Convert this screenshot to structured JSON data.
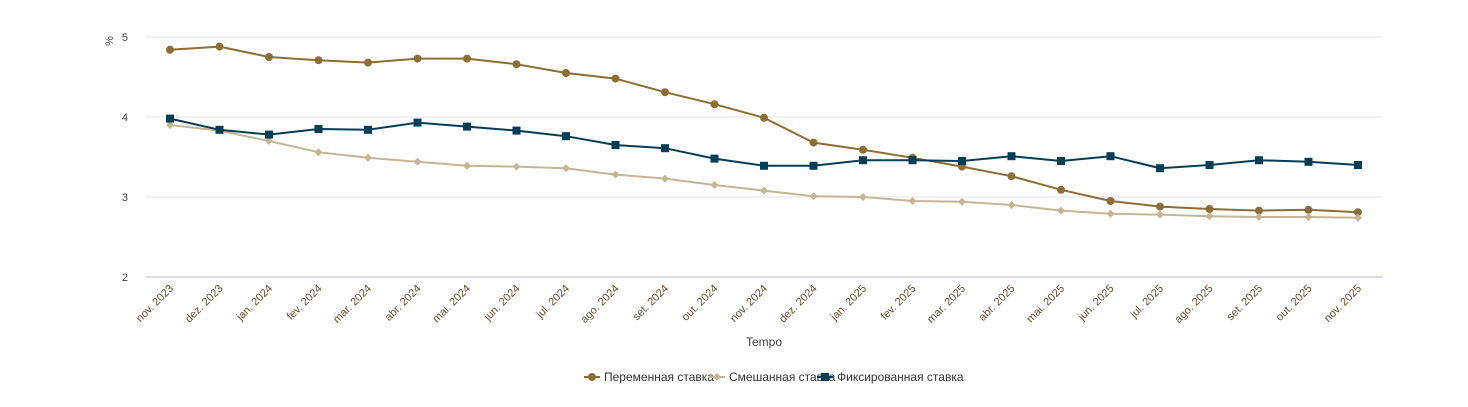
{
  "chart_data": {
    "type": "line",
    "title": "",
    "xlabel": "Tempo",
    "ylabel": "%",
    "ylim": [
      2,
      5
    ],
    "yticks": [
      2,
      3,
      4,
      5
    ],
    "grid": true,
    "legend_position": "bottom",
    "categories": [
      "nov. 2023",
      "dez. 2023",
      "jan. 2024",
      "fev. 2024",
      "mar. 2024",
      "abr. 2024",
      "mai. 2024",
      "jun. 2024",
      "jul. 2024",
      "ago. 2024",
      "set. 2024",
      "out. 2024",
      "nov. 2024",
      "dez. 2024",
      "jan. 2025",
      "fev. 2025",
      "mar. 2025",
      "abr. 2025",
      "mai. 2025",
      "jun. 2025",
      "jul. 2025",
      "ago. 2025",
      "set. 2025",
      "out. 2025",
      "nov. 2025"
    ],
    "series": [
      {
        "name": "Переменная ставка",
        "color": "#8c6d35",
        "marker": "circle",
        "values": [
          4.84,
          4.88,
          4.75,
          4.71,
          4.68,
          4.73,
          4.73,
          4.66,
          4.55,
          4.48,
          4.31,
          4.16,
          3.99,
          3.68,
          3.59,
          3.49,
          3.38,
          3.26,
          3.09,
          2.95,
          2.88,
          2.85,
          2.83,
          2.84,
          2.81
        ]
      },
      {
        "name": "Смешанная ставка",
        "color": "#c5b594",
        "marker": "diamond",
        "values": [
          3.9,
          3.83,
          3.7,
          3.56,
          3.49,
          3.44,
          3.39,
          3.38,
          3.36,
          3.28,
          3.23,
          3.15,
          3.08,
          3.01,
          3.0,
          2.95,
          2.94,
          2.9,
          2.83,
          2.79,
          2.78,
          2.76,
          2.75,
          2.75,
          2.74
        ]
      },
      {
        "name": "Фиксированная ставка",
        "color": "#053d57",
        "marker": "square",
        "values": [
          3.98,
          3.84,
          3.78,
          3.85,
          3.84,
          3.93,
          3.88,
          3.83,
          3.76,
          3.65,
          3.61,
          3.48,
          3.39,
          3.39,
          3.46,
          3.46,
          3.45,
          3.51,
          3.45,
          3.51,
          3.36,
          3.4,
          3.46,
          3.44,
          3.4
        ]
      }
    ]
  }
}
